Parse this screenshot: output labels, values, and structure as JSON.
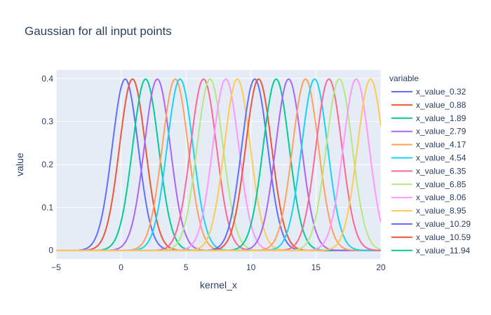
{
  "chart_data": {
    "type": "line",
    "title": "Gaussian for all input points",
    "xlabel": "kernel_x",
    "ylabel": "value",
    "xlim": [
      -5,
      20
    ],
    "ylim": [
      -0.02,
      0.42
    ],
    "x_ticks": [
      -5,
      0,
      5,
      10,
      15,
      20
    ],
    "y_ticks": [
      0,
      0.1,
      0.2,
      0.3,
      0.4
    ],
    "y_tick_labels": [
      "0",
      "0.1",
      "0.2",
      "0.3",
      "0.4"
    ],
    "grid": true,
    "legend": {
      "title": "variable",
      "position": "right"
    },
    "curve": {
      "kind": "gaussian",
      "sigma": 1,
      "peak": 0.3989,
      "x_range": [
        -5,
        20
      ],
      "step": 0.05
    },
    "series": [
      {
        "name": "x_value_0.32",
        "mean": 0.32,
        "color": "#636efa"
      },
      {
        "name": "x_value_0.88",
        "mean": 0.88,
        "color": "#EF553B"
      },
      {
        "name": "x_value_1.89",
        "mean": 1.89,
        "color": "#00cc96"
      },
      {
        "name": "x_value_2.79",
        "mean": 2.79,
        "color": "#ab63fa"
      },
      {
        "name": "x_value_4.17",
        "mean": 4.17,
        "color": "#FFA15A"
      },
      {
        "name": "x_value_4.54",
        "mean": 4.54,
        "color": "#19d3f3"
      },
      {
        "name": "x_value_6.35",
        "mean": 6.35,
        "color": "#FF6692"
      },
      {
        "name": "x_value_6.85",
        "mean": 6.85,
        "color": "#B6E880"
      },
      {
        "name": "x_value_8.06",
        "mean": 8.06,
        "color": "#FF97FF"
      },
      {
        "name": "x_value_8.95",
        "mean": 8.95,
        "color": "#FECB52"
      },
      {
        "name": "x_value_10.29",
        "mean": 10.29,
        "color": "#636efa"
      },
      {
        "name": "x_value_10.59",
        "mean": 10.59,
        "color": "#EF553B"
      },
      {
        "name": "x_value_11.94",
        "mean": 11.94,
        "color": "#00cc96"
      },
      {
        "name": "",
        "mean": 12.9,
        "color": "#ab63fa"
      },
      {
        "name": "",
        "mean": 14.2,
        "color": "#FFA15A"
      },
      {
        "name": "",
        "mean": 14.9,
        "color": "#19d3f3"
      },
      {
        "name": "",
        "mean": 16.0,
        "color": "#FF6692"
      },
      {
        "name": "",
        "mean": 16.8,
        "color": "#B6E880"
      },
      {
        "name": "",
        "mean": 18.1,
        "color": "#FF97FF"
      },
      {
        "name": "",
        "mean": 19.2,
        "color": "#FECB52"
      }
    ]
  },
  "colors": {
    "plot_bg": "#e5ecf6",
    "grid": "#ffffff",
    "text": "#2a3f5f"
  }
}
